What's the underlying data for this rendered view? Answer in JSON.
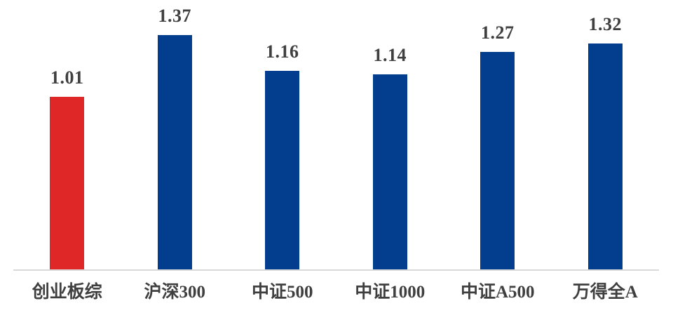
{
  "chart_data": {
    "type": "bar",
    "categories": [
      "创业板综",
      "沪深300",
      "中证500",
      "中证1000",
      "中证A500",
      "万得全A"
    ],
    "values": [
      1.01,
      1.37,
      1.16,
      1.14,
      1.27,
      1.32
    ],
    "value_labels": [
      "1.01",
      "1.37",
      "1.16",
      "1.14",
      "1.27",
      "1.32"
    ],
    "series": [
      {
        "name": "",
        "values": [
          1.01,
          1.37,
          1.16,
          1.14,
          1.27,
          1.32
        ]
      }
    ],
    "title": "",
    "xlabel": "",
    "ylabel": "",
    "ylim": [
      0,
      1.575
    ],
    "grid": false,
    "legend_position": "none",
    "bar_colors": [
      "#de2726",
      "#033d8e",
      "#033d8e",
      "#033d8e",
      "#033d8e",
      "#033d8e"
    ],
    "colors": {
      "highlight_red": "#de2726",
      "primary_blue": "#033d8e",
      "axis_line": "#d9d9d9",
      "label_text": "#3f3f3f"
    }
  }
}
